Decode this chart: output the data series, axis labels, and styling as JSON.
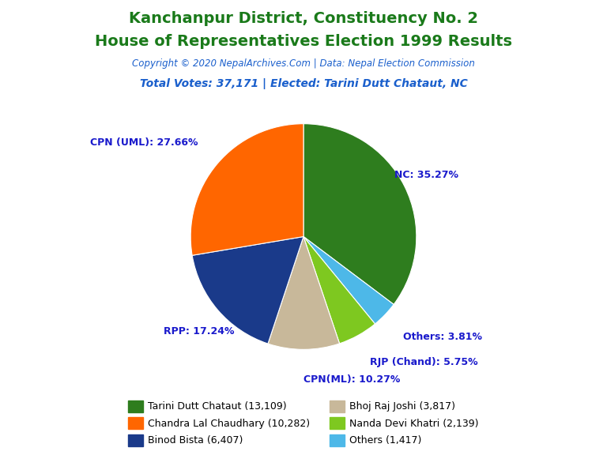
{
  "title_line1": "Kanchanpur District, Constituency No. 2",
  "title_line2": "House of Representatives Election 1999 Results",
  "title_color": "#1a7a1a",
  "copyright_text": "Copyright © 2020 NepalArchives.Com | Data: Nepal Election Commission",
  "copyright_color": "#1a5fcc",
  "subtitle_text": "Total Votes: 37,171 | Elected: Tarini Dutt Chataut, NC",
  "subtitle_color": "#1a5fcc",
  "slices": [
    {
      "label": "NC",
      "value": 13109,
      "pct": 35.27,
      "color": "#2e7d1e"
    },
    {
      "label": "Others",
      "value": 1417,
      "pct": 3.81,
      "color": "#4db8e8"
    },
    {
      "label": "RJP (Chand)",
      "value": 2139,
      "pct": 5.75,
      "color": "#7ec820"
    },
    {
      "label": "CPN(ML)",
      "value": 3817,
      "pct": 10.27,
      "color": "#c8b89a"
    },
    {
      "label": "RPP",
      "value": 6407,
      "pct": 17.24,
      "color": "#1a3a8a"
    },
    {
      "label": "CPN (UML)",
      "value": 10282,
      "pct": 27.66,
      "color": "#ff6600"
    }
  ],
  "legend_entries": [
    {
      "label": "Tarini Dutt Chataut (13,109)",
      "color": "#2e7d1e"
    },
    {
      "label": "Chandra Lal Chaudhary (10,282)",
      "color": "#ff6600"
    },
    {
      "label": "Binod Bista (6,407)",
      "color": "#1a3a8a"
    },
    {
      "label": "Bhoj Raj Joshi (3,817)",
      "color": "#c8b89a"
    },
    {
      "label": "Nanda Devi Khatri (2,139)",
      "color": "#7ec820"
    },
    {
      "label": "Others (1,417)",
      "color": "#4db8e8"
    }
  ],
  "label_color": "#1a1acc",
  "background_color": "#ffffff",
  "label_positions": {
    "NC": {
      "r": 1.22,
      "ha": "center"
    },
    "Others": {
      "r": 1.22,
      "ha": "left"
    },
    "RJP (Chand)": {
      "r": 1.22,
      "ha": "left"
    },
    "CPN(ML)": {
      "r": 1.22,
      "ha": "left"
    },
    "RPP": {
      "r": 1.22,
      "ha": "center"
    },
    "CPN (UML)": {
      "r": 1.22,
      "ha": "right"
    }
  }
}
